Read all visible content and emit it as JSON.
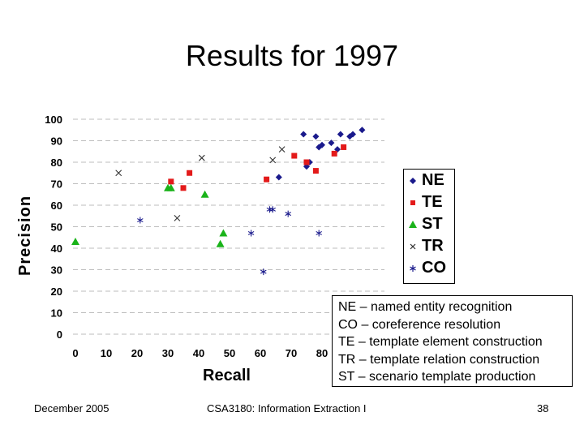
{
  "slide": {
    "title": "Results for 1997",
    "footer_left": "December 2005",
    "footer_center": "CSA3180: Information Extraction I",
    "footer_right": "38"
  },
  "abbreviations": [
    "NE – named entity recognition",
    "CO – coreference resolution",
    "TE – template element construction",
    "TR – template relation construction",
    "ST – scenario template production"
  ],
  "chart_data": {
    "type": "scatter",
    "title": "",
    "xlabel": "Recall",
    "ylabel": "Precision",
    "xlim": [
      0,
      100
    ],
    "ylim": [
      0,
      100
    ],
    "x_ticks": [
      "0",
      "10",
      "20",
      "30",
      "40",
      "50",
      "60",
      "70",
      "80"
    ],
    "y_ticks": [
      "0",
      "10",
      "20",
      "30",
      "40",
      "50",
      "60",
      "70",
      "80",
      "90",
      "100"
    ],
    "grid": "horizontal-dashed",
    "legend_position": "right",
    "series": [
      {
        "name": "NE",
        "marker": "diamond",
        "color": "#1a1a8c",
        "points": [
          [
            66,
            73
          ],
          [
            74,
            93
          ],
          [
            78,
            92
          ],
          [
            75,
            78
          ],
          [
            76,
            80
          ],
          [
            79,
            87
          ],
          [
            80,
            88
          ],
          [
            83,
            89
          ],
          [
            85,
            86
          ],
          [
            86,
            93
          ],
          [
            89,
            92
          ],
          [
            90,
            93
          ],
          [
            93,
            95
          ]
        ]
      },
      {
        "name": "TE",
        "marker": "square",
        "color": "#e31a1a",
        "points": [
          [
            31,
            71
          ],
          [
            35,
            68
          ],
          [
            37,
            75
          ],
          [
            62,
            72
          ],
          [
            71,
            83
          ],
          [
            75,
            80
          ],
          [
            78,
            76
          ],
          [
            84,
            84
          ],
          [
            87,
            87
          ]
        ]
      },
      {
        "name": "ST",
        "marker": "triangle",
        "color": "#1ab31a",
        "points": [
          [
            0,
            43
          ],
          [
            30,
            68
          ],
          [
            31,
            68
          ],
          [
            42,
            65
          ],
          [
            47,
            42
          ],
          [
            48,
            47
          ]
        ]
      },
      {
        "name": "TR",
        "marker": "x",
        "color": "#333333",
        "points": [
          [
            14,
            75
          ],
          [
            33,
            54
          ],
          [
            41,
            82
          ],
          [
            64,
            81
          ],
          [
            67,
            86
          ]
        ]
      },
      {
        "name": "CO",
        "marker": "asterisk",
        "color": "#1a1a8c",
        "points": [
          [
            21,
            53
          ],
          [
            57,
            47
          ],
          [
            61,
            29
          ],
          [
            63,
            58
          ],
          [
            64,
            58
          ],
          [
            69,
            56
          ],
          [
            79,
            47
          ]
        ]
      }
    ]
  }
}
